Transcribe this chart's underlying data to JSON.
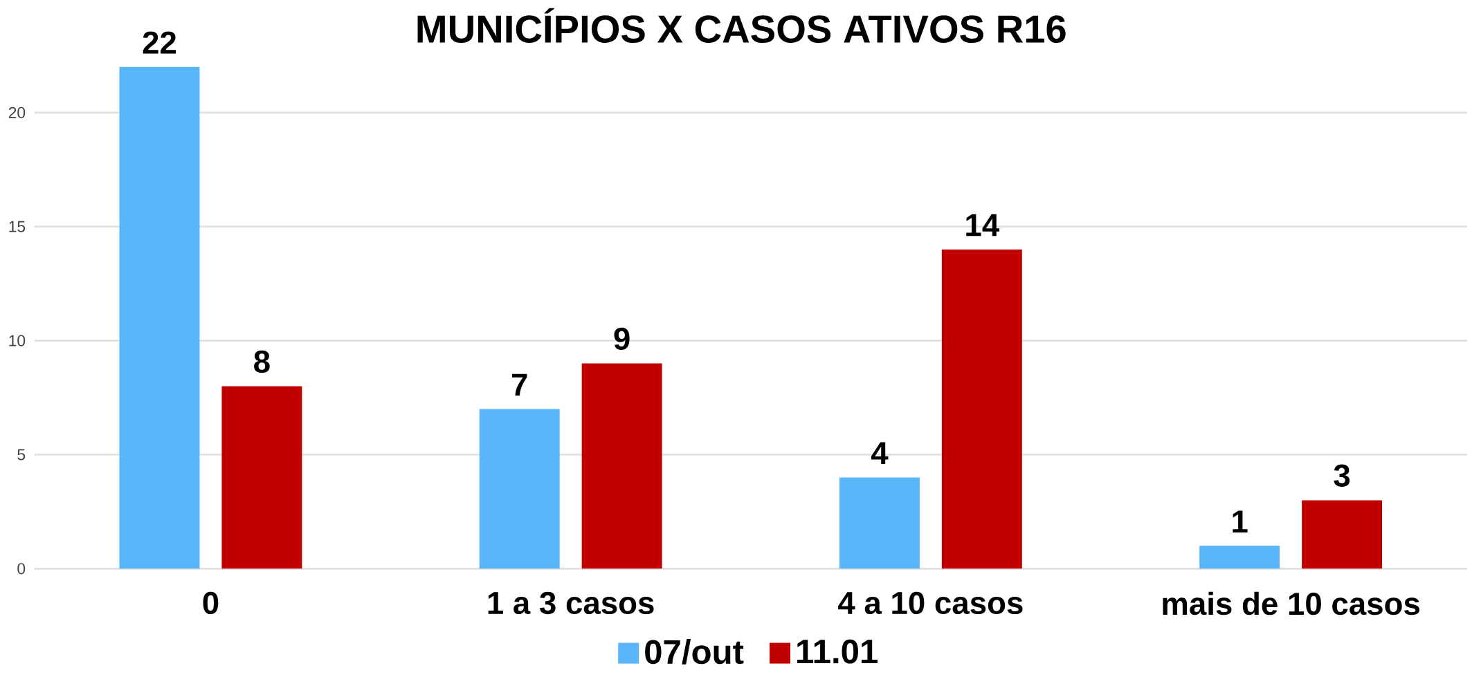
{
  "chart_data": {
    "type": "bar",
    "title": "MUNICÍPIOS X CASOS ATIVOS R16",
    "categories": [
      "0",
      "1 a 3 casos",
      "4 a 10 casos",
      "mais de 10 casos"
    ],
    "series": [
      {
        "name": "07/out",
        "color": "#5ab4f8",
        "values": [
          22,
          7,
          4,
          1
        ]
      },
      {
        "name": "11.01",
        "color": "#c00000",
        "values": [
          8,
          9,
          14,
          3
        ]
      }
    ],
    "ylim": [
      0,
      22
    ],
    "yticks": [
      0,
      5,
      10,
      15,
      20
    ],
    "grid": "y",
    "legend": "bottom",
    "data_labels": true
  }
}
